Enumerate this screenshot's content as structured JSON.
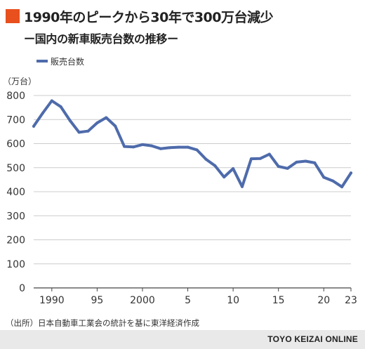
{
  "title": "1990年のピークから30年で300万台減少",
  "subtitle": "ー国内の新車販売台数の推移ー",
  "source": "（出所）日本自動車工業会の統計を基に東洋経済作成",
  "credit": "TOYO KEIZAI ONLINE",
  "colors": {
    "accent": "#e8501e",
    "line": "#4e6bab",
    "grid": "#cccccc",
    "footer_bg": "#e9e9e9"
  },
  "chart_data": {
    "type": "line",
    "ylabel": "（万台）",
    "ylim": [
      0,
      800
    ],
    "yticks": [
      0,
      100,
      200,
      300,
      400,
      500,
      600,
      700,
      800
    ],
    "xlim": [
      1988,
      2023
    ],
    "xticks": [
      1990,
      1995,
      2000,
      2005,
      2010,
      2015,
      2020,
      2023
    ],
    "xtick_labels": [
      "1990",
      "95",
      "2000",
      "5",
      "10",
      "15",
      "20",
      "23"
    ],
    "grid": "horizontal",
    "legend": "top-left",
    "series": [
      {
        "name": "販売台数",
        "x": [
          1988,
          1989,
          1990,
          1991,
          1992,
          1993,
          1994,
          1995,
          1996,
          1997,
          1998,
          1999,
          2000,
          2001,
          2002,
          2003,
          2004,
          2005,
          2006,
          2007,
          2008,
          2009,
          2010,
          2011,
          2012,
          2013,
          2014,
          2015,
          2016,
          2017,
          2018,
          2019,
          2020,
          2021,
          2022,
          2023
        ],
        "values": [
          672,
          727,
          778,
          753,
          696,
          647,
          652,
          686,
          708,
          673,
          588,
          586,
          596,
          591,
          579,
          583,
          585,
          585,
          574,
          535,
          508,
          461,
          496,
          421,
          537,
          538,
          556,
          505,
          497,
          523,
          527,
          520,
          460,
          445,
          420,
          478
        ]
      }
    ]
  }
}
